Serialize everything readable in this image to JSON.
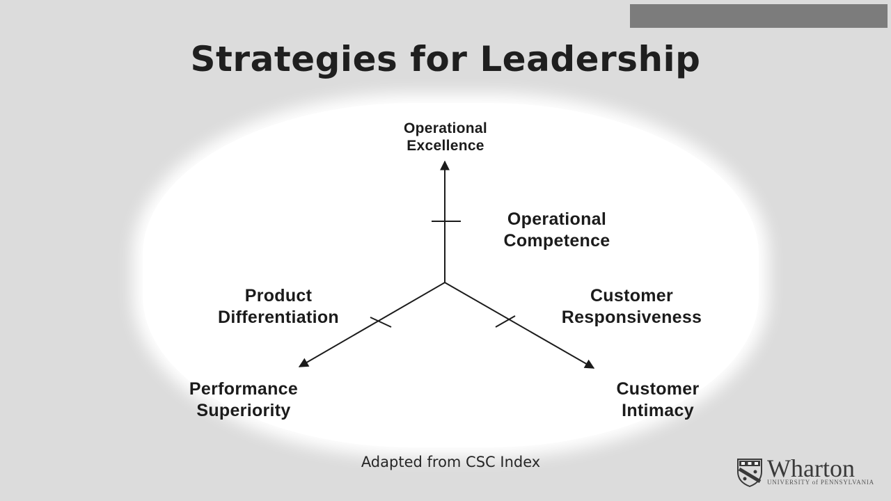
{
  "slide": {
    "title": "Strategies for Leadership",
    "caption": "Adapted from CSC Index"
  },
  "diagram": {
    "axes": {
      "top": [
        "Operational",
        "Excellence"
      ],
      "left": [
        "Performance",
        "Superiority"
      ],
      "right": [
        "Customer",
        "Intimacy"
      ]
    },
    "midpoints": {
      "top": [
        "Operational",
        "Competence"
      ],
      "left": [
        "Product",
        "Differentiation"
      ],
      "right": [
        "Customer",
        "Responsiveness"
      ]
    }
  },
  "logo": {
    "name": "Wharton",
    "subtitle": "UNIVERSITY of PENNSYLVANIA",
    "icon": "penn-shield-icon"
  },
  "colors": {
    "background": "#dcdcdc",
    "diagram_background": "#ffffff",
    "ink": "#1b1b1b",
    "top_bar": "#7c7c7c"
  }
}
